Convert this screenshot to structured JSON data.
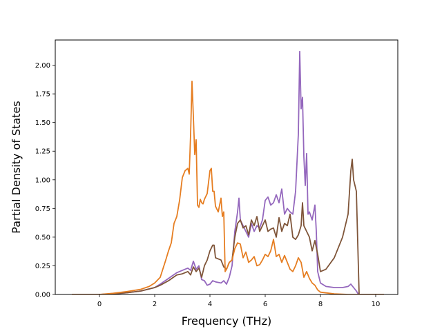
{
  "chart_data": {
    "type": "line",
    "title": "",
    "xlabel": "Frequency (THz)",
    "ylabel": "Partial Density of States",
    "xlim": [
      -1.6,
      10.8
    ],
    "ylim": [
      0.0,
      2.22
    ],
    "x_ticks": [
      0,
      2,
      4,
      6,
      8,
      10
    ],
    "y_ticks": [
      0.0,
      0.25,
      0.5,
      0.75,
      1.0,
      1.25,
      1.5,
      1.75,
      2.0
    ],
    "x_tick_labels": [
      "0",
      "2",
      "4",
      "6",
      "8",
      "10"
    ],
    "y_tick_labels": [
      "0.00",
      "0.25",
      "0.50",
      "0.75",
      "1.00",
      "1.25",
      "1.50",
      "1.75",
      "2.00"
    ],
    "grid": false,
    "legend": "none",
    "series": [
      {
        "color": "#9467bd",
        "x": [
          -1.0,
          0.0,
          0.5,
          1.0,
          1.5,
          2.0,
          2.2,
          2.5,
          2.8,
          3.0,
          3.2,
          3.3,
          3.4,
          3.5,
          3.6,
          3.7,
          3.8,
          3.9,
          4.0,
          4.1,
          4.2,
          4.4,
          4.5,
          4.6,
          4.7,
          4.8,
          4.9,
          5.0,
          5.05,
          5.1,
          5.2,
          5.3,
          5.4,
          5.5,
          5.6,
          5.7,
          5.8,
          5.9,
          6.0,
          6.1,
          6.2,
          6.3,
          6.4,
          6.5,
          6.6,
          6.7,
          6.8,
          6.9,
          7.0,
          7.1,
          7.2,
          7.25,
          7.3,
          7.35,
          7.4,
          7.45,
          7.5,
          7.55,
          7.6,
          7.7,
          7.8,
          7.85,
          7.9,
          8.0,
          8.2,
          8.5,
          8.8,
          9.0,
          9.1,
          9.2,
          9.3,
          9.35,
          9.4,
          10.3
        ],
        "values": [
          0.0,
          0.0,
          0.005,
          0.015,
          0.03,
          0.06,
          0.09,
          0.14,
          0.19,
          0.21,
          0.23,
          0.21,
          0.29,
          0.22,
          0.25,
          0.13,
          0.12,
          0.08,
          0.09,
          0.12,
          0.11,
          0.1,
          0.12,
          0.09,
          0.15,
          0.25,
          0.55,
          0.72,
          0.84,
          0.65,
          0.6,
          0.55,
          0.5,
          0.62,
          0.55,
          0.6,
          0.58,
          0.65,
          0.82,
          0.85,
          0.78,
          0.8,
          0.87,
          0.8,
          0.92,
          0.7,
          0.75,
          0.72,
          0.7,
          0.9,
          1.4,
          2.12,
          1.62,
          1.72,
          1.2,
          0.95,
          1.23,
          0.7,
          0.72,
          0.65,
          0.78,
          0.55,
          0.2,
          0.1,
          0.07,
          0.06,
          0.06,
          0.07,
          0.09,
          0.06,
          0.03,
          0.01,
          0.0,
          0.0
        ]
      },
      {
        "color": "#7f5539",
        "x": [
          -1.0,
          0.0,
          0.5,
          1.0,
          1.5,
          2.0,
          2.2,
          2.5,
          2.8,
          3.0,
          3.2,
          3.3,
          3.4,
          3.5,
          3.6,
          3.7,
          3.8,
          3.9,
          4.0,
          4.1,
          4.15,
          4.2,
          4.4,
          4.5,
          4.6,
          4.7,
          4.8,
          4.9,
          5.0,
          5.1,
          5.2,
          5.3,
          5.4,
          5.5,
          5.6,
          5.7,
          5.8,
          5.9,
          6.0,
          6.1,
          6.2,
          6.3,
          6.4,
          6.5,
          6.6,
          6.7,
          6.8,
          6.9,
          7.0,
          7.1,
          7.2,
          7.3,
          7.35,
          7.4,
          7.5,
          7.6,
          7.7,
          7.8,
          7.9,
          8.0,
          8.2,
          8.5,
          8.8,
          9.0,
          9.1,
          9.15,
          9.2,
          9.3,
          9.4,
          10.3
        ],
        "values": [
          0.0,
          0.0,
          0.005,
          0.015,
          0.03,
          0.06,
          0.08,
          0.12,
          0.17,
          0.18,
          0.2,
          0.17,
          0.24,
          0.2,
          0.23,
          0.15,
          0.25,
          0.3,
          0.38,
          0.43,
          0.43,
          0.32,
          0.3,
          0.24,
          0.22,
          0.28,
          0.3,
          0.5,
          0.62,
          0.65,
          0.58,
          0.6,
          0.52,
          0.65,
          0.6,
          0.68,
          0.55,
          0.6,
          0.65,
          0.55,
          0.57,
          0.58,
          0.5,
          0.67,
          0.55,
          0.62,
          0.6,
          0.7,
          0.5,
          0.48,
          0.52,
          0.6,
          0.8,
          0.6,
          0.55,
          0.5,
          0.38,
          0.47,
          0.35,
          0.2,
          0.22,
          0.32,
          0.5,
          0.7,
          1.08,
          1.18,
          1.0,
          0.9,
          0.0,
          0.0
        ]
      },
      {
        "color": "#e67e22",
        "x": [
          -1.0,
          0.0,
          0.5,
          1.0,
          1.5,
          1.8,
          2.0,
          2.2,
          2.4,
          2.5,
          2.6,
          2.7,
          2.8,
          2.9,
          3.0,
          3.1,
          3.2,
          3.25,
          3.3,
          3.35,
          3.4,
          3.45,
          3.5,
          3.55,
          3.6,
          3.65,
          3.7,
          3.75,
          3.8,
          3.9,
          4.0,
          4.05,
          4.1,
          4.15,
          4.2,
          4.3,
          4.4,
          4.45,
          4.5,
          4.55,
          4.6,
          4.7,
          4.8,
          4.9,
          5.0,
          5.1,
          5.2,
          5.3,
          5.4,
          5.5,
          5.6,
          5.7,
          5.8,
          5.9,
          6.0,
          6.1,
          6.2,
          6.3,
          6.4,
          6.5,
          6.6,
          6.7,
          6.8,
          6.9,
          7.0,
          7.1,
          7.2,
          7.3,
          7.4,
          7.5,
          7.6,
          7.7,
          7.8,
          7.9,
          8.0,
          8.5,
          9.0,
          9.4,
          10.3
        ],
        "values": [
          0.0,
          0.0,
          0.01,
          0.025,
          0.045,
          0.07,
          0.1,
          0.15,
          0.3,
          0.38,
          0.45,
          0.62,
          0.68,
          0.82,
          1.02,
          1.08,
          1.1,
          1.05,
          1.4,
          1.86,
          1.55,
          1.22,
          1.35,
          0.78,
          0.76,
          0.83,
          0.8,
          0.79,
          0.83,
          0.88,
          1.08,
          1.1,
          0.9,
          0.9,
          0.77,
          0.72,
          0.84,
          0.68,
          0.72,
          0.2,
          0.22,
          0.28,
          0.3,
          0.4,
          0.45,
          0.44,
          0.32,
          0.37,
          0.28,
          0.3,
          0.33,
          0.25,
          0.26,
          0.3,
          0.35,
          0.33,
          0.38,
          0.48,
          0.33,
          0.35,
          0.28,
          0.34,
          0.28,
          0.22,
          0.2,
          0.25,
          0.32,
          0.28,
          0.15,
          0.2,
          0.14,
          0.1,
          0.08,
          0.04,
          0.02,
          0.005,
          0.0,
          0.0,
          0.0
        ]
      }
    ]
  }
}
